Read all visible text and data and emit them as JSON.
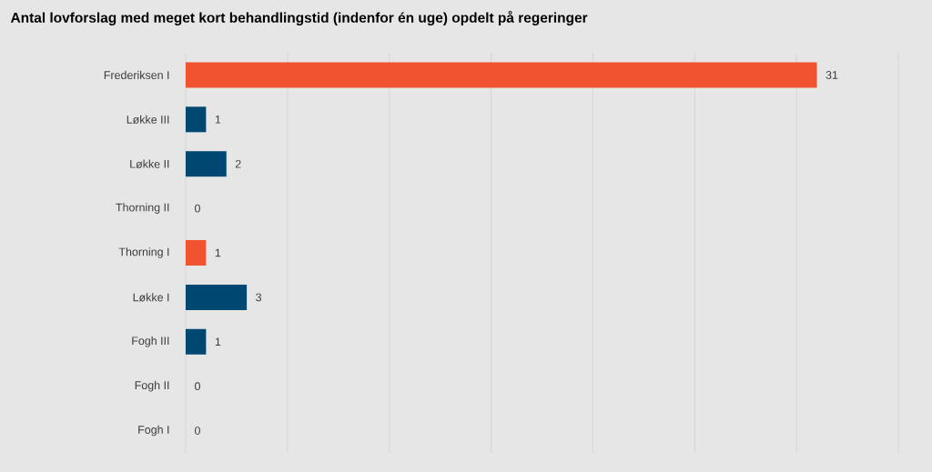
{
  "chart_data": {
    "type": "bar",
    "orientation": "horizontal",
    "title": "Antal lovforslag med meget kort behandlingstid (indenfor én uge) opdelt på regeringer",
    "categories": [
      "Frederiksen I",
      "Løkke III",
      "Løkke II",
      "Thorning II",
      "Thorning I",
      "Løkke I",
      "Fogh III",
      "Fogh II",
      "Fogh I"
    ],
    "values": [
      31,
      1,
      2,
      0,
      1,
      3,
      1,
      0,
      0
    ],
    "colors": [
      "#f15330",
      "#004872",
      "#004872",
      "#004872",
      "#f15330",
      "#004872",
      "#004872",
      "#004872",
      "#004872"
    ],
    "xlim": [
      0,
      35
    ],
    "xticks": [
      {
        "value": 0,
        "label": null
      },
      {
        "value": 5,
        "label": null
      },
      {
        "value": 10,
        "label": null
      },
      {
        "value": 15,
        "label": null
      },
      {
        "value": 20,
        "label": null
      },
      {
        "value": 25,
        "label": null
      },
      {
        "value": 30,
        "label": null
      },
      {
        "value": 35,
        "label": null
      }
    ],
    "grid": "x",
    "tick_labels": "y",
    "data_labels": true
  }
}
